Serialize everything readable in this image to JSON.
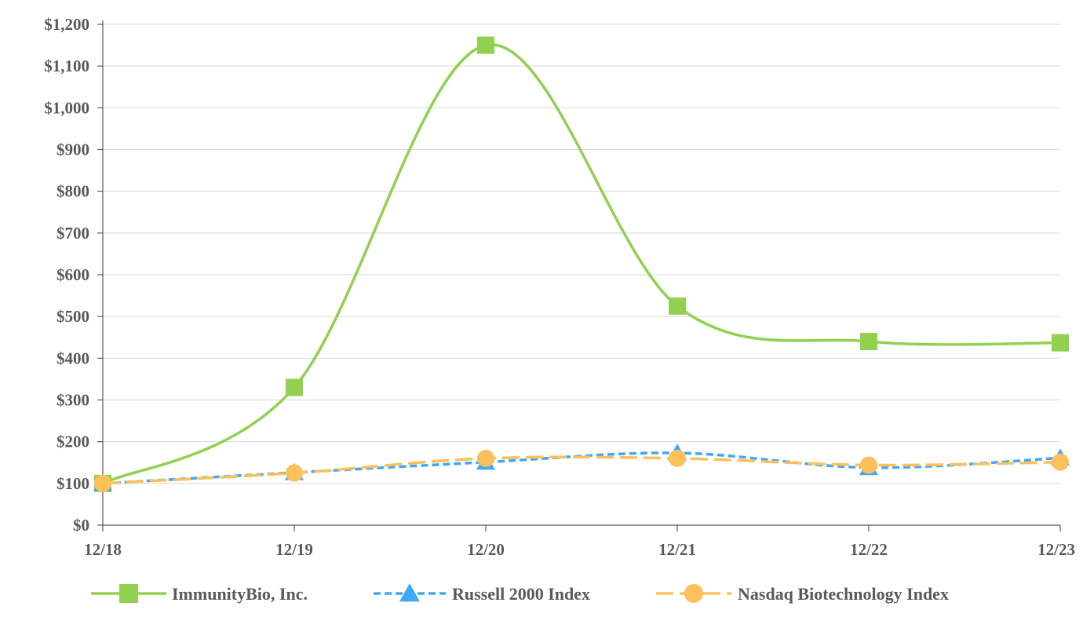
{
  "chart_data": {
    "type": "line",
    "categories": [
      "12/18",
      "12/19",
      "12/20",
      "12/21",
      "12/22",
      "12/23"
    ],
    "ylim": [
      0,
      1200
    ],
    "y_ticks": [
      "$0",
      "$100",
      "$200",
      "$300",
      "$400",
      "$500",
      "$600",
      "$700",
      "$800",
      "$900",
      "$1,000",
      "$1,100",
      "$1,200"
    ],
    "grid": "horizontal",
    "legend_position": "bottom",
    "series": [
      {
        "name": "ImmunityBio, Inc.",
        "values": [
          100,
          330,
          1150,
          525,
          440,
          437
        ],
        "color": "#92d050",
        "marker": "square",
        "dash": "solid"
      },
      {
        "name": "Russell 2000 Index",
        "values": [
          100,
          126,
          151,
          173,
          138,
          161
        ],
        "color": "#3fa9f5",
        "marker": "triangle",
        "dash": "dashed"
      },
      {
        "name": "Nasdaq Biotechnology Index",
        "values": [
          100,
          125,
          160,
          160,
          144,
          151
        ],
        "color": "#fdc05b",
        "marker": "circle",
        "dash": "long-dash"
      }
    ]
  }
}
